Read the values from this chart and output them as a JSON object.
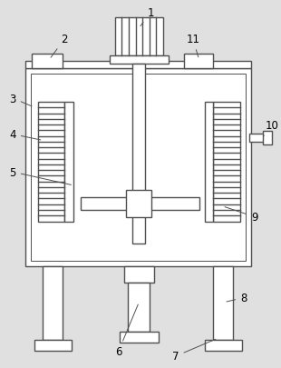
{
  "bg_color": "#e0e0e0",
  "line_color": "#505050",
  "lw": 1.0,
  "fig_w": 3.1,
  "fig_h": 4.06,
  "font_size": 8.5
}
